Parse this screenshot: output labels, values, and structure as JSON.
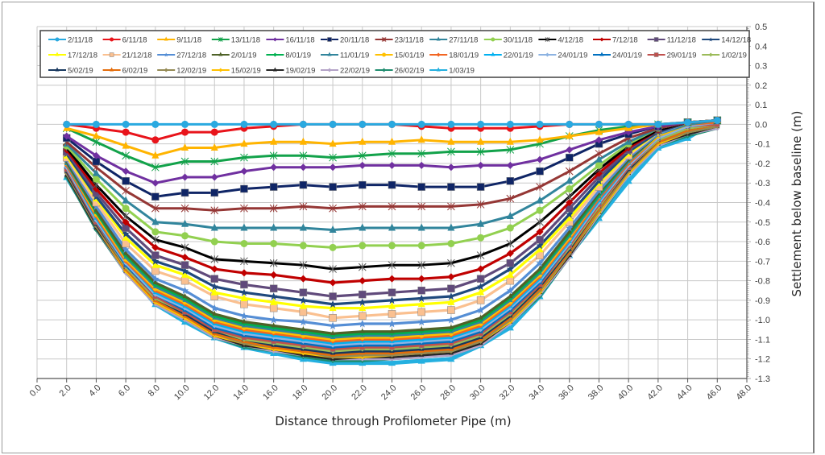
{
  "chart_data": {
    "type": "line",
    "title": "",
    "xlabel": "Distance through Profilometer Pipe (m)",
    "ylabel": "Settlement below baseline (m)",
    "xlim": [
      0,
      48
    ],
    "ylim": [
      -1.3,
      0.5
    ],
    "grid": true,
    "legend_position": "top",
    "x_ticks": [
      "0.0",
      "2.0",
      "4.0",
      "6.0",
      "8.0",
      "10.0",
      "12.0",
      "14.0",
      "16.0",
      "18.0",
      "20.0",
      "22.0",
      "24.0",
      "26.0",
      "28.0",
      "30.0",
      "32.0",
      "34.0",
      "36.0",
      "38.0",
      "40.0",
      "42.0",
      "44.0",
      "46.0",
      "48.0"
    ],
    "y_ticks": [
      "0.5",
      "0.4",
      "0.3",
      "0.2",
      "0.1",
      "0.0",
      "-0.1",
      "-0.2",
      "-0.3",
      "-0.4",
      "-0.5",
      "-0.6",
      "-0.7",
      "-0.8",
      "-0.9",
      "-1.0",
      "-1.1",
      "-1.2",
      "-1.3"
    ],
    "x": [
      2,
      4,
      6,
      8,
      10,
      12,
      14,
      16,
      18,
      20,
      22,
      24,
      26,
      28,
      30,
      32,
      34,
      36,
      38,
      40,
      42,
      44,
      46
    ],
    "series": [
      {
        "name": "2/11/18",
        "color": "#29a9e0",
        "marker": "circle",
        "values": [
          0.0,
          0.0,
          0.0,
          0.0,
          0.0,
          0.0,
          0.0,
          0.0,
          0.0,
          0.0,
          0.0,
          0.0,
          0.0,
          0.0,
          0.0,
          0.0,
          0.0,
          0.0,
          0.0,
          0.0,
          0.0,
          0.01,
          0.02
        ]
      },
      {
        "name": "6/11/18",
        "color": "#e8141b",
        "marker": "circle",
        "values": [
          0.0,
          -0.02,
          -0.04,
          -0.08,
          -0.04,
          -0.04,
          -0.02,
          -0.01,
          0.0,
          0.0,
          0.0,
          0.0,
          -0.01,
          -0.02,
          -0.02,
          -0.02,
          -0.01,
          0.0,
          0.0,
          0.0,
          0.0,
          0.01,
          0.02
        ]
      },
      {
        "name": "9/11/18",
        "color": "#ffb400",
        "marker": "triangle",
        "values": [
          -0.02,
          -0.06,
          -0.11,
          -0.16,
          -0.12,
          -0.12,
          -0.1,
          -0.09,
          -0.09,
          -0.1,
          -0.09,
          -0.09,
          -0.08,
          -0.09,
          -0.09,
          -0.09,
          -0.08,
          -0.06,
          -0.04,
          -0.02,
          0.0,
          0.01,
          0.02
        ]
      },
      {
        "name": "13/11/18",
        "color": "#12a24a",
        "marker": "asterisk",
        "values": [
          -0.02,
          -0.09,
          -0.16,
          -0.22,
          -0.19,
          -0.19,
          -0.17,
          -0.16,
          -0.16,
          -0.17,
          -0.16,
          -0.15,
          -0.15,
          -0.14,
          -0.14,
          -0.13,
          -0.1,
          -0.06,
          -0.03,
          -0.01,
          0.0,
          0.01,
          0.02
        ]
      },
      {
        "name": "16/11/18",
        "color": "#7030a0",
        "marker": "diamond",
        "values": [
          -0.06,
          -0.16,
          -0.24,
          -0.3,
          -0.27,
          -0.27,
          -0.24,
          -0.22,
          -0.22,
          -0.22,
          -0.21,
          -0.21,
          -0.21,
          -0.22,
          -0.21,
          -0.21,
          -0.18,
          -0.13,
          -0.08,
          -0.04,
          -0.01,
          0.01,
          0.02
        ]
      },
      {
        "name": "20/11/18",
        "color": "#0f2566",
        "marker": "square",
        "values": [
          -0.07,
          -0.19,
          -0.29,
          -0.37,
          -0.35,
          -0.35,
          -0.33,
          -0.32,
          -0.31,
          -0.32,
          -0.31,
          -0.31,
          -0.32,
          -0.32,
          -0.32,
          -0.29,
          -0.24,
          -0.17,
          -0.1,
          -0.05,
          -0.01,
          0.01,
          0.02
        ]
      },
      {
        "name": "23/11/18",
        "color": "#953735",
        "marker": "asterisk",
        "values": [
          -0.09,
          -0.22,
          -0.34,
          -0.43,
          -0.43,
          -0.44,
          -0.43,
          -0.43,
          -0.42,
          -0.43,
          -0.42,
          -0.42,
          -0.42,
          -0.42,
          -0.41,
          -0.38,
          -0.32,
          -0.24,
          -0.15,
          -0.07,
          -0.02,
          0.01,
          0.02
        ]
      },
      {
        "name": "27/11/18",
        "color": "#31859c",
        "marker": "triangle",
        "values": [
          -0.1,
          -0.25,
          -0.39,
          -0.5,
          -0.51,
          -0.53,
          -0.53,
          -0.53,
          -0.53,
          -0.54,
          -0.53,
          -0.53,
          -0.53,
          -0.53,
          -0.51,
          -0.47,
          -0.39,
          -0.29,
          -0.18,
          -0.09,
          -0.02,
          0.01,
          0.02
        ]
      },
      {
        "name": "30/11/18",
        "color": "#92d050",
        "marker": "circle",
        "values": [
          -0.11,
          -0.28,
          -0.43,
          -0.55,
          -0.57,
          -0.6,
          -0.61,
          -0.61,
          -0.62,
          -0.63,
          -0.62,
          -0.62,
          -0.62,
          -0.61,
          -0.58,
          -0.53,
          -0.44,
          -0.33,
          -0.21,
          -0.1,
          -0.02,
          0.01,
          0.02
        ]
      },
      {
        "name": "4/12/18",
        "color": "#000000",
        "marker": "asterisk",
        "values": [
          -0.12,
          -0.31,
          -0.47,
          -0.59,
          -0.63,
          -0.69,
          -0.7,
          -0.71,
          -0.72,
          -0.74,
          -0.73,
          -0.72,
          -0.72,
          -0.71,
          -0.67,
          -0.61,
          -0.5,
          -0.37,
          -0.23,
          -0.11,
          -0.03,
          0.01,
          0.02
        ]
      },
      {
        "name": "7/12/18",
        "color": "#c00000",
        "marker": "diamond",
        "values": [
          -0.13,
          -0.33,
          -0.5,
          -0.63,
          -0.68,
          -0.74,
          -0.76,
          -0.77,
          -0.79,
          -0.81,
          -0.8,
          -0.79,
          -0.79,
          -0.78,
          -0.74,
          -0.66,
          -0.55,
          -0.4,
          -0.25,
          -0.12,
          -0.03,
          0.01,
          0.02
        ]
      },
      {
        "name": "11/12/18",
        "color": "#604a7b",
        "marker": "square",
        "values": [
          -0.14,
          -0.35,
          -0.53,
          -0.67,
          -0.72,
          -0.79,
          -0.82,
          -0.84,
          -0.86,
          -0.88,
          -0.87,
          -0.86,
          -0.85,
          -0.84,
          -0.79,
          -0.71,
          -0.59,
          -0.43,
          -0.27,
          -0.13,
          -0.03,
          0.01,
          0.02
        ]
      },
      {
        "name": "14/12/18",
        "color": "#1f497d",
        "marker": "star",
        "values": [
          -0.15,
          -0.37,
          -0.56,
          -0.7,
          -0.75,
          -0.83,
          -0.86,
          -0.88,
          -0.9,
          -0.92,
          -0.91,
          -0.9,
          -0.89,
          -0.88,
          -0.83,
          -0.74,
          -0.62,
          -0.46,
          -0.29,
          -0.14,
          -0.04,
          0.01,
          0.02
        ]
      },
      {
        "name": "17/12/18",
        "color": "#ffff00",
        "marker": "triangle",
        "values": [
          -0.16,
          -0.38,
          -0.58,
          -0.72,
          -0.77,
          -0.86,
          -0.89,
          -0.91,
          -0.93,
          -0.94,
          -0.94,
          -0.93,
          -0.92,
          -0.91,
          -0.86,
          -0.77,
          -0.64,
          -0.48,
          -0.3,
          -0.15,
          -0.04,
          0.01,
          0.02
        ]
      },
      {
        "name": "21/12/18",
        "color": "#fac090",
        "marker": "square",
        "values": [
          -0.17,
          -0.4,
          -0.61,
          -0.75,
          -0.8,
          -0.88,
          -0.92,
          -0.94,
          -0.96,
          -0.99,
          -0.98,
          -0.97,
          -0.96,
          -0.95,
          -0.9,
          -0.8,
          -0.67,
          -0.5,
          -0.32,
          -0.16,
          -0.04,
          0.01,
          0.02
        ]
      },
      {
        "name": "27/12/18",
        "color": "#558ed5",
        "marker": "star",
        "values": [
          -0.18,
          -0.42,
          -0.64,
          -0.79,
          -0.85,
          -0.94,
          -0.98,
          -1.0,
          -1.01,
          -1.03,
          -1.02,
          -1.02,
          -1.01,
          -1.0,
          -0.95,
          -0.85,
          -0.71,
          -0.53,
          -0.34,
          -0.17,
          -0.05,
          0.01,
          0.02
        ]
      },
      {
        "name": "2/01/19",
        "color": "#4f6228",
        "marker": "triangle",
        "values": [
          -0.19,
          -0.44,
          -0.66,
          -0.81,
          -0.88,
          -0.97,
          -1.01,
          -1.03,
          -1.05,
          -1.07,
          -1.06,
          -1.06,
          -1.05,
          -1.04,
          -0.99,
          -0.88,
          -0.74,
          -0.55,
          -0.35,
          -0.18,
          -0.05,
          0.01,
          0.02
        ]
      },
      {
        "name": "8/01/19",
        "color": "#00b050",
        "marker": "diamond",
        "values": [
          -0.19,
          -0.45,
          -0.67,
          -0.82,
          -0.89,
          -0.98,
          -1.02,
          -1.04,
          -1.06,
          -1.08,
          -1.07,
          -1.07,
          -1.06,
          -1.05,
          -1.0,
          -0.89,
          -0.75,
          -0.56,
          -0.36,
          -0.18,
          -0.05,
          0.01,
          0.02
        ]
      },
      {
        "name": "11/01/19",
        "color": "#31859c",
        "marker": "triangle",
        "values": [
          -0.2,
          -0.45,
          -0.68,
          -0.83,
          -0.9,
          -0.99,
          -1.03,
          -1.05,
          -1.07,
          -1.09,
          -1.08,
          -1.08,
          -1.07,
          -1.06,
          -1.01,
          -0.9,
          -0.76,
          -0.57,
          -0.37,
          -0.19,
          -0.05,
          0.0,
          0.02
        ]
      },
      {
        "name": "15/01/19",
        "color": "#ffc000",
        "marker": "circle",
        "values": [
          -0.2,
          -0.46,
          -0.69,
          -0.84,
          -0.91,
          -1.0,
          -1.04,
          -1.06,
          -1.08,
          -1.1,
          -1.09,
          -1.09,
          -1.08,
          -1.07,
          -1.02,
          -0.91,
          -0.77,
          -0.58,
          -0.37,
          -0.19,
          -0.06,
          0.0,
          0.02
        ]
      },
      {
        "name": "18/01/19",
        "color": "#f26522",
        "marker": "diamond",
        "values": [
          -0.21,
          -0.47,
          -0.7,
          -0.85,
          -0.92,
          -1.01,
          -1.05,
          -1.07,
          -1.09,
          -1.11,
          -1.1,
          -1.1,
          -1.09,
          -1.08,
          -1.03,
          -0.92,
          -0.78,
          -0.59,
          -0.38,
          -0.2,
          -0.06,
          0.0,
          0.01
        ]
      },
      {
        "name": "22/01/19",
        "color": "#00b0f0",
        "marker": "triangle",
        "values": [
          -0.21,
          -0.48,
          -0.7,
          -0.86,
          -0.93,
          -1.02,
          -1.06,
          -1.08,
          -1.1,
          -1.12,
          -1.11,
          -1.11,
          -1.1,
          -1.09,
          -1.04,
          -0.93,
          -0.79,
          -0.6,
          -0.39,
          -0.2,
          -0.06,
          0.0,
          0.01
        ]
      },
      {
        "name": "24/01/19",
        "color": "#8db3e2",
        "marker": "diamond",
        "values": [
          -0.22,
          -0.49,
          -0.71,
          -0.87,
          -0.94,
          -1.03,
          -1.07,
          -1.09,
          -1.11,
          -1.13,
          -1.12,
          -1.12,
          -1.11,
          -1.1,
          -1.05,
          -0.94,
          -0.8,
          -0.61,
          -0.4,
          -0.21,
          -0.07,
          -0.01,
          0.01
        ]
      },
      {
        "name": "24/01/19",
        "color": "#0070c0",
        "marker": "triangle",
        "values": [
          -0.22,
          -0.49,
          -0.72,
          -0.87,
          -0.95,
          -1.04,
          -1.08,
          -1.1,
          -1.12,
          -1.14,
          -1.13,
          -1.13,
          -1.12,
          -1.11,
          -1.06,
          -0.95,
          -0.81,
          -0.61,
          -0.4,
          -0.21,
          -0.07,
          -0.01,
          0.01
        ]
      },
      {
        "name": "29/01/19",
        "color": "#c0504d",
        "marker": "square",
        "values": [
          -0.23,
          -0.5,
          -0.72,
          -0.88,
          -0.96,
          -1.05,
          -1.09,
          -1.11,
          -1.13,
          -1.15,
          -1.14,
          -1.14,
          -1.13,
          -1.12,
          -1.07,
          -0.96,
          -0.82,
          -0.62,
          -0.41,
          -0.22,
          -0.07,
          -0.01,
          0.0
        ]
      },
      {
        "name": "1/02/19",
        "color": "#9bbb59",
        "marker": "diamond",
        "values": [
          -0.23,
          -0.5,
          -0.73,
          -0.89,
          -0.96,
          -1.05,
          -1.1,
          -1.12,
          -1.14,
          -1.16,
          -1.15,
          -1.15,
          -1.14,
          -1.13,
          -1.08,
          -0.97,
          -0.82,
          -0.63,
          -0.42,
          -0.22,
          -0.08,
          -0.02,
          0.0
        ]
      },
      {
        "name": "5/02/19",
        "color": "#17375e",
        "marker": "triangle",
        "values": [
          -0.24,
          -0.51,
          -0.73,
          -0.89,
          -0.97,
          -1.06,
          -1.1,
          -1.13,
          -1.15,
          -1.17,
          -1.16,
          -1.16,
          -1.15,
          -1.14,
          -1.09,
          -0.98,
          -0.83,
          -0.64,
          -0.42,
          -0.23,
          -0.08,
          -0.02,
          0.0
        ]
      },
      {
        "name": "6/02/19",
        "color": "#e46c0a",
        "marker": "triangle",
        "values": [
          -0.24,
          -0.51,
          -0.74,
          -0.9,
          -0.98,
          -1.07,
          -1.11,
          -1.14,
          -1.16,
          -1.18,
          -1.17,
          -1.17,
          -1.16,
          -1.15,
          -1.1,
          -0.99,
          -0.84,
          -0.65,
          -0.43,
          -0.23,
          -0.09,
          -0.03,
          0.0
        ]
      },
      {
        "name": "12/02/19",
        "color": "#948a54",
        "marker": "diamond",
        "values": [
          -0.25,
          -0.52,
          -0.74,
          -0.9,
          -0.98,
          -1.07,
          -1.12,
          -1.14,
          -1.16,
          -1.19,
          -1.18,
          -1.18,
          -1.17,
          -1.16,
          -1.11,
          -1.0,
          -0.85,
          -0.66,
          -0.44,
          -0.24,
          -0.09,
          -0.04,
          -0.01
        ]
      },
      {
        "name": "15/02/19",
        "color": "#ffc000",
        "marker": "diamond",
        "values": [
          -0.25,
          -0.52,
          -0.75,
          -0.91,
          -0.99,
          -1.08,
          -1.12,
          -1.15,
          -1.17,
          -1.19,
          -1.19,
          -1.18,
          -1.17,
          -1.16,
          -1.11,
          -1.01,
          -0.86,
          -0.66,
          -0.45,
          -0.25,
          -0.1,
          -0.04,
          -0.01
        ]
      },
      {
        "name": "19/02/19",
        "color": "#262626",
        "marker": "triangle",
        "values": [
          -0.26,
          -0.53,
          -0.75,
          -0.91,
          -0.99,
          -1.08,
          -1.13,
          -1.15,
          -1.18,
          -1.2,
          -1.19,
          -1.19,
          -1.18,
          -1.17,
          -1.12,
          -1.01,
          -0.86,
          -0.67,
          -0.45,
          -0.25,
          -0.1,
          -0.05,
          -0.01
        ]
      },
      {
        "name": "22/02/19",
        "color": "#b3a2c7",
        "marker": "diamond",
        "values": [
          -0.26,
          -0.53,
          -0.76,
          -0.92,
          -1.0,
          -1.09,
          -1.13,
          -1.16,
          -1.18,
          -1.2,
          -1.2,
          -1.2,
          -1.19,
          -1.18,
          -1.13,
          -1.02,
          -0.87,
          -0.68,
          -0.46,
          -0.26,
          -0.11,
          -0.05,
          -0.02
        ]
      },
      {
        "name": "26/02/19",
        "color": "#1e8c6e",
        "marker": "diamond",
        "values": [
          -0.27,
          -0.54,
          -0.76,
          -0.92,
          -1.0,
          -1.09,
          -1.14,
          -1.16,
          -1.19,
          -1.21,
          -1.21,
          -1.2,
          -1.19,
          -1.18,
          -1.13,
          -1.02,
          -0.88,
          -0.68,
          -0.47,
          -0.26,
          -0.11,
          -0.06,
          -0.02
        ]
      },
      {
        "name": "1/03/19",
        "color": "#24b0e0",
        "marker": "triangle",
        "values": [
          -0.27,
          -0.52,
          -0.74,
          -0.92,
          -1.01,
          -1.09,
          -1.14,
          -1.17,
          -1.2,
          -1.22,
          -1.22,
          -1.22,
          -1.21,
          -1.2,
          -1.13,
          -1.04,
          -0.88,
          -0.67,
          -0.48,
          -0.29,
          -0.12,
          -0.07,
          0.02
        ]
      }
    ]
  }
}
